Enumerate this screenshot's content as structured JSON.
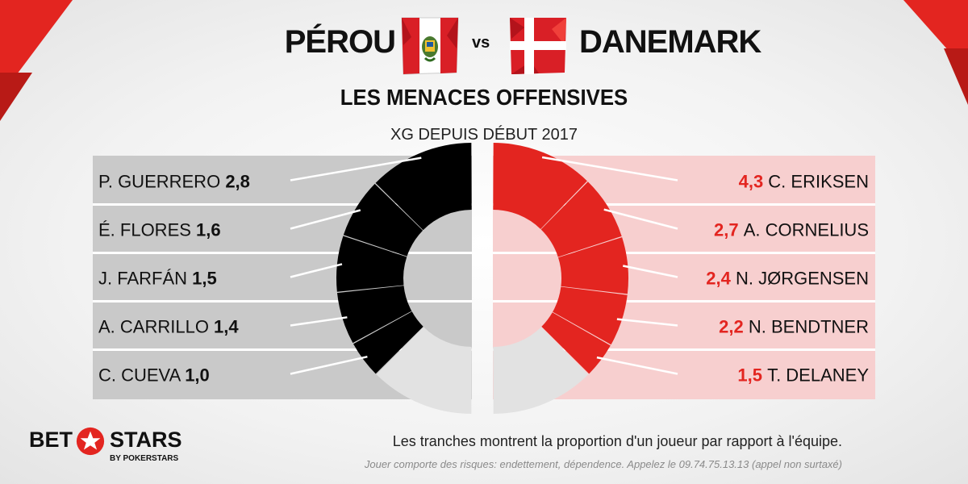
{
  "header": {
    "team_left": "PÉROU",
    "vs": "vs",
    "team_right": "DANEMARK",
    "subtitle": "LES MENACES OFFENSIVES",
    "metric": "XG DEPUIS DÉBUT 2017"
  },
  "colors": {
    "accent": "#e32520",
    "peru_slice": "#000000",
    "denmark_slice": "#e32520",
    "peru_panel": "#c9c9c9",
    "denmark_panel": "#f7cfcf",
    "remainder": "#e2e2e2"
  },
  "chart_data": [
    {
      "type": "pie",
      "team": "PÉROU",
      "categories": [
        "P. GUERRERO",
        "É. FLORES",
        "J. FARFÁN",
        "A. CARRILLO",
        "C. CUEVA"
      ],
      "values": [
        2.8,
        1.6,
        1.5,
        1.4,
        1.0
      ],
      "labels": [
        "2,8",
        "1,6",
        "1,5",
        "1,4",
        "1,0"
      ]
    },
    {
      "type": "pie",
      "team": "DANEMARK",
      "categories": [
        "C. ERIKSEN",
        "A. CORNELIUS",
        "N. JØRGENSEN",
        "N. BENDTNER",
        "T. DELANEY"
      ],
      "values": [
        4.3,
        2.7,
        2.4,
        2.2,
        1.5
      ],
      "labels": [
        "4,3",
        "2,7",
        "2,4",
        "2,2",
        "1,5"
      ]
    }
  ],
  "footer": {
    "note": "Les tranches montrent la proportion d'un joueur par rapport à l'équipe.",
    "legal": "Jouer comporte des risques: endettement, dépendence. Appelez le 09.74.75.13.13 (appel non surtaxé)"
  },
  "logo": {
    "bet": "BET",
    "stars": "STARS",
    "sub": "BY POKERSTARS"
  }
}
